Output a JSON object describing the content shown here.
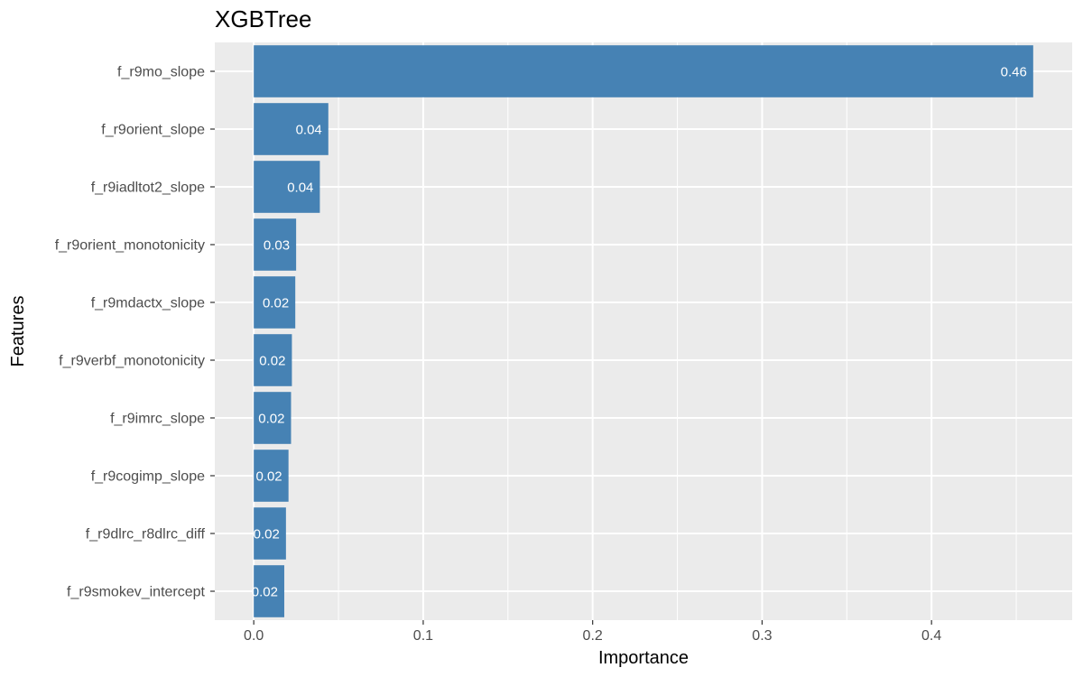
{
  "chart_data": {
    "type": "bar",
    "orientation": "horizontal",
    "title": "XGBTree",
    "xlabel": "Importance",
    "ylabel": "Features",
    "categories": [
      "f_r9mo_slope",
      "f_r9orient_slope",
      "f_r9iadltot2_slope",
      "f_r9orient_monotonicity",
      "f_r9mdactx_slope",
      "f_r9verbf_monotonicity",
      "f_r9imrc_slope",
      "f_r9cogimp_slope",
      "f_r9dlrc_r8dlrc_diff",
      "f_r9smokev_intercept"
    ],
    "values": [
      0.46,
      0.044,
      0.039,
      0.025,
      0.0245,
      0.0225,
      0.022,
      0.0205,
      0.019,
      0.018
    ],
    "data_labels": [
      "0.46",
      "0.04",
      "0.04",
      "0.03",
      "0.02",
      "0.02",
      "0.02",
      "0.02",
      "0.02",
      "0.02"
    ],
    "xlim": [
      -0.023,
      0.483
    ],
    "x_ticks": [
      0.0,
      0.1,
      0.2,
      0.3,
      0.4
    ],
    "x_tick_labels": [
      "0.0",
      "0.1",
      "0.2",
      "0.3",
      "0.4"
    ],
    "grid": true,
    "legend": "none",
    "bar_color": "#4682b4",
    "panel_color": "#ebebeb",
    "grid_color": "#ffffff"
  }
}
